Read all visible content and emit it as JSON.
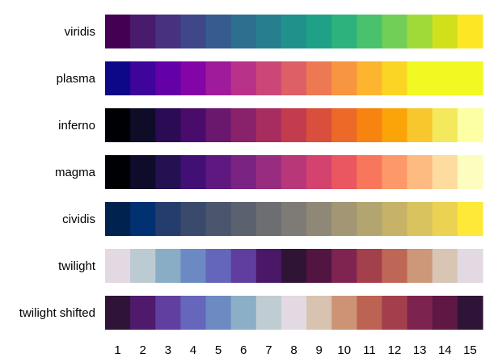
{
  "chart_data": {
    "type": "heatmap",
    "x": [
      "1",
      "2",
      "3",
      "4",
      "5",
      "6",
      "7",
      "8",
      "9",
      "10",
      "11",
      "12",
      "13",
      "14",
      "15"
    ],
    "series": [
      {
        "name": "viridis",
        "colors": [
          "#440154",
          "#481b6d",
          "#46327e",
          "#3f4788",
          "#365c8d",
          "#2e6e8e",
          "#277f8e",
          "#21918c",
          "#1fa187",
          "#2db27d",
          "#4ac16d",
          "#71cf57",
          "#a0da39",
          "#d0e11c",
          "#fde725"
        ]
      },
      {
        "name": "plasma",
        "colors": [
          "#0d0887",
          "#3e049c",
          "#6300a7",
          "#8405a7",
          "#a01a9c",
          "#b93289",
          "#cc4778",
          "#de5f65",
          "#ed7953",
          "#f89540",
          "#fdb42f",
          "#fbd524",
          "#f0f921",
          "#f0f921",
          "#f0f921"
        ]
      },
      {
        "name": "inferno",
        "colors": [
          "#000004",
          "#0f0c28",
          "#2a0b54",
          "#4a0c6b",
          "#6a176e",
          "#89226a",
          "#a72d5f",
          "#c33c4e",
          "#d94f3b",
          "#ec6927",
          "#f78311",
          "#fba40a",
          "#f8c72d",
          "#f4e95c",
          "#fcffa4"
        ]
      },
      {
        "name": "magma",
        "colors": [
          "#000004",
          "#0e0b2b",
          "#231151",
          "#420f75",
          "#5f187f",
          "#7b2382",
          "#982d80",
          "#b73779",
          "#d3436e",
          "#eb5760",
          "#f8765c",
          "#fd9969",
          "#febb81",
          "#fedc9f",
          "#fcfdbf"
        ]
      },
      {
        "name": "cividis",
        "colors": [
          "#00224e",
          "#023171",
          "#253d6c",
          "#3a4a6c",
          "#4b556e",
          "#5c6170",
          "#6d6e72",
          "#7e7b76",
          "#8f8877",
          "#a29674",
          "#b3a56f",
          "#c6b368",
          "#d8c35f",
          "#ebd252",
          "#fee838"
        ]
      },
      {
        "name": "twilight",
        "colors": [
          "#e2d9e2",
          "#bccbd2",
          "#8aadc6",
          "#6c89c3",
          "#6466bc",
          "#5f3e9f",
          "#4b1868",
          "#2f1436",
          "#521542",
          "#7f2450",
          "#a3404c",
          "#bf6757",
          "#cd9879",
          "#d9c5b4",
          "#e2d9e2"
        ]
      },
      {
        "name": "twilight shifted",
        "colors": [
          "#301437",
          "#4f1a6c",
          "#613fa0",
          "#6566bc",
          "#6d8ac3",
          "#8bafc6",
          "#bfcdd3",
          "#e2d9e2",
          "#d8c2b0",
          "#cc9475",
          "#bd6354",
          "#a33e4c",
          "#7d234f",
          "#5f1844",
          "#301437"
        ]
      }
    ]
  }
}
